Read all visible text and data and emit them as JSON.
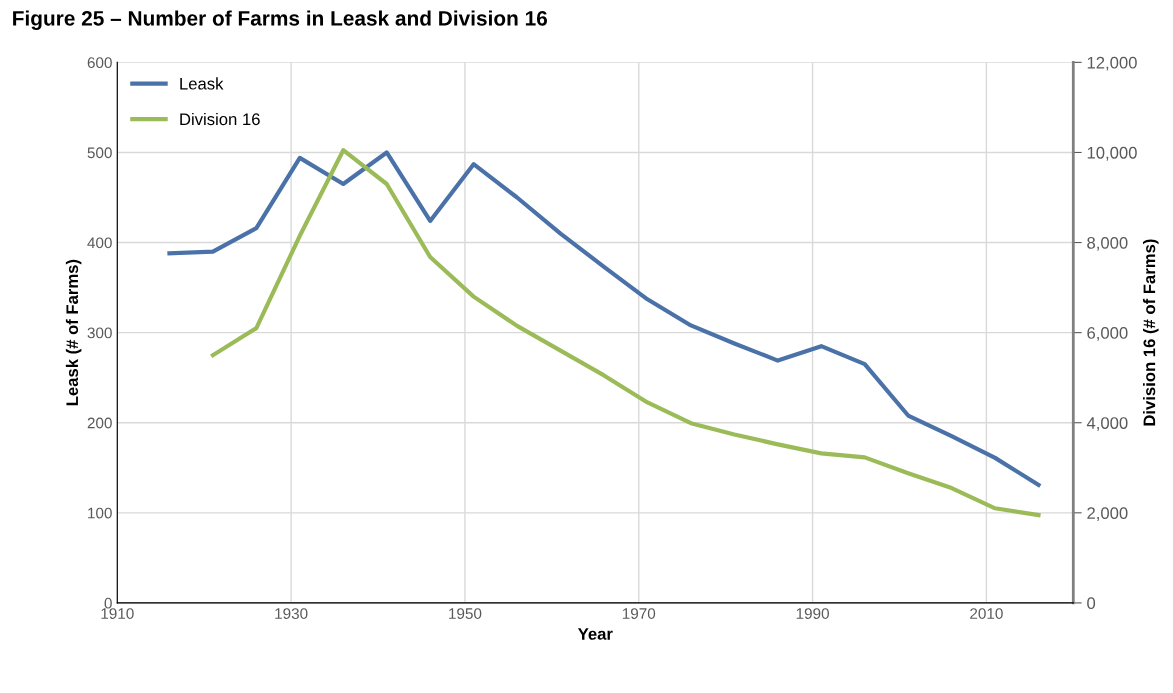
{
  "chart_data": {
    "type": "line",
    "title": "Figure 25 – Number of Farms in Leask and Division 16",
    "xlabel": "Year",
    "ylabel": "Leask (# of Farms)",
    "y2label": "Division 16 (# of Farms)",
    "xlim": [
      1910,
      2020
    ],
    "xticks": [
      1910,
      1930,
      1950,
      1970,
      1990,
      2010
    ],
    "ylim": [
      0,
      600
    ],
    "yticks": [
      0,
      100,
      200,
      300,
      400,
      500,
      600
    ],
    "y2lim": [
      0,
      12000
    ],
    "y2ticks": [
      {
        "value": 0,
        "label": "0"
      },
      {
        "value": 2000,
        "label": "2,000"
      },
      {
        "value": 4000,
        "label": "4,000"
      },
      {
        "value": 6000,
        "label": "6,000"
      },
      {
        "value": 8000,
        "label": "8,000"
      },
      {
        "value": 10000,
        "label": "10,000"
      },
      {
        "value": 12000,
        "label": "12,000"
      }
    ],
    "grid": true,
    "legend": "top left",
    "marker": "none",
    "line_style": "solid",
    "series": [
      {
        "name": "Leask",
        "color": "#4a72a8",
        "x": [
          1916,
          1921,
          1926,
          1931,
          1936,
          1941,
          1946,
          1951,
          1956,
          1961,
          1966,
          1971,
          1976,
          1981,
          1986,
          1991,
          1996,
          2001,
          2006,
          2011,
          2016
        ],
        "values": [
          388,
          390,
          416,
          494,
          465,
          500,
          424,
          487,
          450,
          410,
          373,
          337,
          308,
          288,
          269,
          285,
          265,
          208,
          185,
          161,
          131
        ]
      },
      {
        "name": "Division 16",
        "color": "#9bbb59",
        "axis": "y2",
        "x": [
          1921,
          1926,
          1931,
          1936,
          1941,
          1946,
          1951,
          1956,
          1961,
          1966,
          1971,
          1976,
          1981,
          1986,
          1991,
          1996,
          2001,
          2006,
          2011,
          2016
        ],
        "values": [
          5500,
          6100,
          8150,
          10050,
          9300,
          7680,
          6800,
          6150,
          5600,
          5050,
          4450,
          3990,
          3740,
          3520,
          3320,
          3230,
          2880,
          2550,
          2100,
          1950
        ]
      }
    ]
  }
}
